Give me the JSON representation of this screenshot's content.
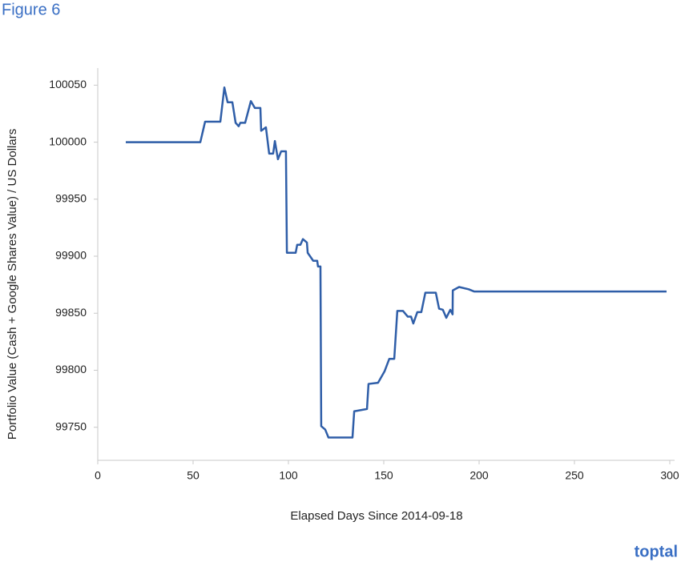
{
  "chart_data": {
    "type": "line",
    "title": "Figure 6",
    "x_label": "Elapsed Days Since 2014-09-18",
    "y_label": "Portfolio Value (Cash + Google Shares Value) / US Dollars",
    "logo": "toptal",
    "x": [
      14.7,
      53.8,
      56.3,
      64.3,
      66.4,
      68.1,
      70.6,
      72.3,
      73.9,
      74.8,
      77.3,
      80.3,
      82.4,
      85.3,
      85.7,
      88.2,
      89.9,
      92,
      92.9,
      94.5,
      96.2,
      98.7,
      99.2,
      103.8,
      104.6,
      106.3,
      107.6,
      109.7,
      110.1,
      113,
      115.1,
      115.5,
      116.8,
      117.2,
      119.3,
      121,
      133.6,
      134.5,
      141.2,
      142,
      147,
      150.4,
      152.9,
      155.5,
      157.1,
      160.1,
      162.6,
      164.3,
      165.5,
      167.6,
      169.7,
      171.8,
      177.3,
      179,
      181,
      182.8,
      184.9,
      186.1,
      186.2,
      189.5,
      194.5,
      197.5,
      298.3
    ],
    "series": [
      {
        "color": "#2f5ea8",
        "values": [
          100000,
          100000,
          100018,
          100018,
          100048,
          100035,
          100035,
          100017,
          100014,
          100017,
          100017,
          100036,
          100030,
          100030,
          100010,
          100013,
          99990,
          99990,
          100001,
          99985,
          99992,
          99992,
          99903,
          99903,
          99910,
          99910,
          99915,
          99912,
          99903,
          99896,
          99896,
          99891,
          99891,
          99751,
          99748,
          99741,
          99741,
          99764,
          99766,
          99788,
          99789,
          99799,
          99810,
          99810,
          99852,
          99852,
          99847,
          99847,
          99841,
          99851,
          99851,
          99868,
          99868,
          99854,
          99853,
          99846,
          99853,
          99849,
          99870,
          99873,
          99871,
          99869,
          99869
        ]
      }
    ],
    "xlim": [
      0,
      300
    ],
    "xticks": [
      0,
      50,
      100,
      150,
      200,
      250,
      300
    ],
    "ylim": [
      99721,
      100065
    ],
    "yticks": [
      99750,
      99800,
      99850,
      99900,
      99950,
      100000,
      100050
    ],
    "grid": false
  }
}
